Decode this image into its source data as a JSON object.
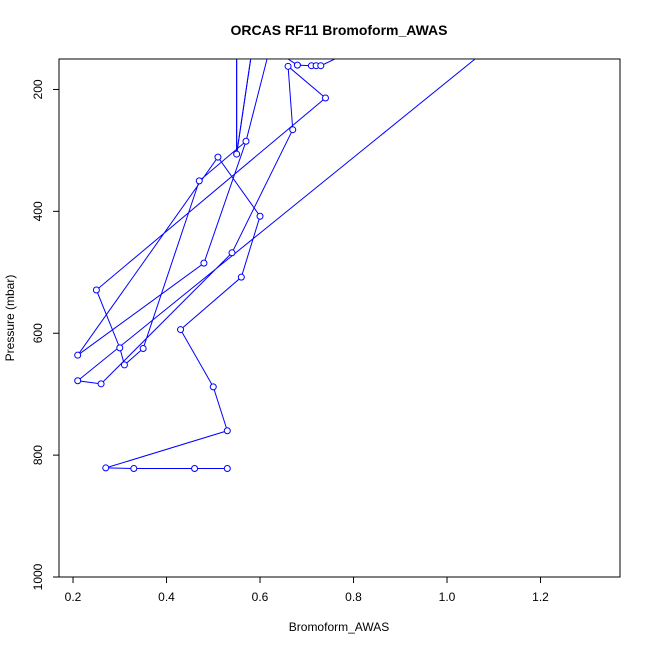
{
  "chart_data": {
    "type": "line",
    "title": "ORCAS RF11 Bromoform_AWAS",
    "xlabel": "Bromoform_AWAS",
    "ylabel": "Pressure (mbar)",
    "xlim": [
      0.17,
      1.37
    ],
    "ylim": [
      1000,
      150
    ],
    "y_inverted": true,
    "x_ticks": [
      0.2,
      0.4,
      0.6,
      0.8,
      1.0,
      1.2
    ],
    "x_tick_labels": [
      "0.2",
      "0.4",
      "0.6",
      "0.8",
      "1.0",
      "1.2"
    ],
    "y_ticks": [
      200,
      400,
      600,
      800,
      1000
    ],
    "y_tick_labels": [
      "200",
      "400",
      "600",
      "800",
      "1000"
    ],
    "grid": false,
    "series_color": "#0000ff",
    "points": [
      {
        "x": 0.53,
        "y": 822
      },
      {
        "x": 0.46,
        "y": 822
      },
      {
        "x": 0.33,
        "y": 822
      },
      {
        "x": 0.27,
        "y": 821
      },
      {
        "x": 0.53,
        "y": 760
      },
      {
        "x": 0.5,
        "y": 688
      },
      {
        "x": 0.43,
        "y": 594
      },
      {
        "x": 0.56,
        "y": 508
      },
      {
        "x": 0.6,
        "y": 408
      },
      {
        "x": 0.51,
        "y": 311
      },
      {
        "x": 0.21,
        "y": 636
      },
      {
        "x": 0.48,
        "y": 485
      },
      {
        "x": 0.57,
        "y": 285
      },
      {
        "x": 0.47,
        "y": 350
      },
      {
        "x": 0.35,
        "y": 625
      },
      {
        "x": 0.31,
        "y": 652
      },
      {
        "x": 0.3,
        "y": 624
      },
      {
        "x": 0.25,
        "y": 529
      },
      {
        "x": 0.74,
        "y": 214
      },
      {
        "x": 0.66,
        "y": 162
      },
      {
        "x": 0.67,
        "y": 266
      },
      {
        "x": 0.54,
        "y": 468
      },
      {
        "x": 0.26,
        "y": 683
      },
      {
        "x": 0.21,
        "y": 678
      },
      {
        "x": 1.06,
        "y": 150
      },
      {
        "x": 0.66,
        "y": 150
      },
      {
        "x": 0.68,
        "y": 160
      },
      {
        "x": 0.71,
        "y": 161
      },
      {
        "x": 0.72,
        "y": 161
      },
      {
        "x": 0.73,
        "y": 161
      },
      {
        "x": 0.76,
        "y": 150
      },
      {
        "x": 0.58,
        "y": 150
      },
      {
        "x": 0.55,
        "y": 306
      },
      {
        "x": 0.55,
        "y": 150
      }
    ],
    "clip_polyline": [
      {
        "x": 0.58,
        "y": 150
      },
      {
        "x": 0.55,
        "y": 306
      },
      {
        "x": 0.55,
        "y": 150
      },
      {
        "x": 0.615,
        "y": 150
      },
      {
        "x": 0.57,
        "y": 285
      }
    ]
  }
}
